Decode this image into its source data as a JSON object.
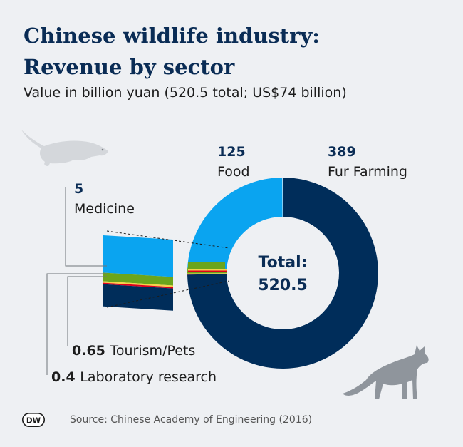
{
  "chart_data": {
    "type": "pie",
    "title_line1": "Chinese wildlife industry:",
    "title_line2": "Revenue by sector",
    "subtitle": "Value in billion yuan (520.5 total; US$74 billion)",
    "center_label": "Total:",
    "center_value": "520.5",
    "total": 520.5,
    "slices": [
      {
        "name": "Fur Farming",
        "value": 389,
        "value_label": "389",
        "color": "#002d5a"
      },
      {
        "name": "Laboratory research",
        "value": 0.4,
        "value_label": "0.4",
        "color": "#e0001b"
      },
      {
        "name": "Tourism/Pets",
        "value": 0.65,
        "value_label": "0.65",
        "color": "#f5d24a"
      },
      {
        "name": "Medicine",
        "value": 5,
        "value_label": "5",
        "color": "#6ba51c"
      },
      {
        "name": "Food",
        "value": 125,
        "value_label": "125",
        "color": "#0aa4f0"
      }
    ]
  },
  "source": "Source: Chinese Academy of Engineering (2016)",
  "logo_text": "DW",
  "icons": {
    "top_left": "ferret-icon",
    "bottom_right": "fox-icon"
  }
}
